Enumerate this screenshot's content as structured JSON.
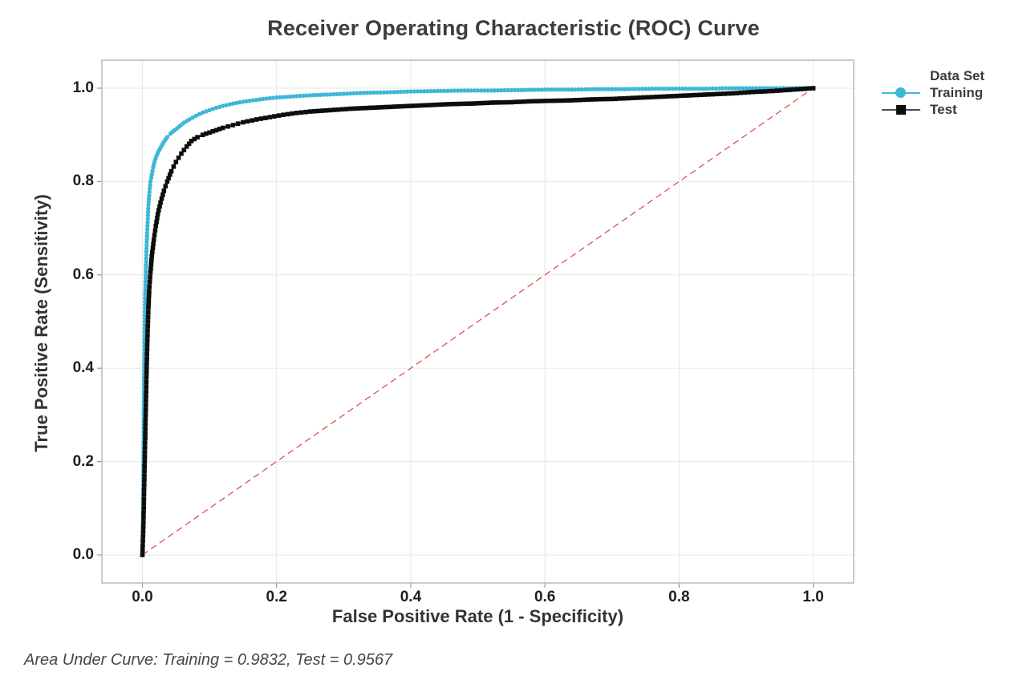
{
  "chart_data": {
    "type": "line",
    "title": "Receiver Operating Characteristic (ROC) Curve",
    "xlabel": "False Positive Rate (1 - Specificity)",
    "ylabel": "True Positive Rate (Sensitivity)",
    "footnote": "Area Under Curve: Training = 0.9832, Test = 0.9567",
    "xlim": [
      0,
      1
    ],
    "ylim": [
      0,
      1
    ],
    "grid": true,
    "x_ticks": [
      0.0,
      0.2,
      0.4,
      0.6,
      0.8,
      1.0
    ],
    "y_ticks": [
      0.0,
      0.2,
      0.4,
      0.6,
      0.8,
      1.0
    ],
    "x_tick_labels": [
      "0.0",
      "0.2",
      "0.4",
      "0.6",
      "0.8",
      "1.0"
    ],
    "y_tick_labels": [
      "0.0",
      "0.2",
      "0.4",
      "0.6",
      "0.8",
      "1.0"
    ],
    "legend": {
      "title": "Data Set",
      "position": "right-top"
    },
    "colors": {
      "grid": "#e7e7e7",
      "frame": "#ababab",
      "tick": "#9b9b9b",
      "diagonal": "#e25050"
    },
    "reference_line": {
      "name": "chance-diagonal",
      "from": [
        0,
        0
      ],
      "to": [
        1,
        1
      ],
      "style": "dashed",
      "color": "#e25050"
    },
    "series": [
      {
        "name": "Training",
        "marker": "circle",
        "color": "#3eb7d7",
        "auc": 0.9832,
        "points": [
          [
            0,
            0
          ],
          [
            0.001,
            0.1
          ],
          [
            0.0015,
            0.2
          ],
          [
            0.002,
            0.3
          ],
          [
            0.0025,
            0.38
          ],
          [
            0.003,
            0.44
          ],
          [
            0.0035,
            0.5
          ],
          [
            0.004,
            0.55
          ],
          [
            0.005,
            0.6
          ],
          [
            0.006,
            0.65
          ],
          [
            0.007,
            0.69
          ],
          [
            0.008,
            0.72
          ],
          [
            0.009,
            0.75
          ],
          [
            0.01,
            0.77
          ],
          [
            0.011,
            0.785
          ],
          [
            0.012,
            0.8
          ],
          [
            0.014,
            0.815
          ],
          [
            0.016,
            0.83
          ],
          [
            0.018,
            0.842
          ],
          [
            0.021,
            0.855
          ],
          [
            0.024,
            0.865
          ],
          [
            0.028,
            0.875
          ],
          [
            0.032,
            0.885
          ],
          [
            0.037,
            0.895
          ],
          [
            0.042,
            0.903
          ],
          [
            0.048,
            0.91
          ],
          [
            0.055,
            0.918
          ],
          [
            0.062,
            0.926
          ],
          [
            0.07,
            0.933
          ],
          [
            0.08,
            0.941
          ],
          [
            0.09,
            0.948
          ],
          [
            0.1,
            0.953
          ],
          [
            0.11,
            0.958
          ],
          [
            0.12,
            0.962
          ],
          [
            0.135,
            0.967
          ],
          [
            0.15,
            0.971
          ],
          [
            0.165,
            0.974
          ],
          [
            0.18,
            0.977
          ],
          [
            0.2,
            0.98
          ],
          [
            0.22,
            0.982
          ],
          [
            0.24,
            0.984
          ],
          [
            0.27,
            0.986
          ],
          [
            0.3,
            0.988
          ],
          [
            0.33,
            0.99
          ],
          [
            0.36,
            0.991
          ],
          [
            0.4,
            0.993
          ],
          [
            0.44,
            0.994
          ],
          [
            0.48,
            0.995
          ],
          [
            0.52,
            0.995
          ],
          [
            0.56,
            0.996
          ],
          [
            0.6,
            0.997
          ],
          [
            0.64,
            0.997
          ],
          [
            0.68,
            0.998
          ],
          [
            0.72,
            0.998
          ],
          [
            0.76,
            0.999
          ],
          [
            0.8,
            0.999
          ],
          [
            0.84,
            0.999
          ],
          [
            0.88,
            1.0
          ],
          [
            0.94,
            1.0
          ],
          [
            1.0,
            1.0
          ]
        ]
      },
      {
        "name": "Test",
        "marker": "square",
        "color": "#0d0d0d",
        "auc": 0.9567,
        "points": [
          [
            0,
            0
          ],
          [
            0.001,
            0.04
          ],
          [
            0.002,
            0.1
          ],
          [
            0.003,
            0.17
          ],
          [
            0.004,
            0.24
          ],
          [
            0.005,
            0.31
          ],
          [
            0.006,
            0.38
          ],
          [
            0.007,
            0.44
          ],
          [
            0.008,
            0.49
          ],
          [
            0.009,
            0.53
          ],
          [
            0.01,
            0.565
          ],
          [
            0.012,
            0.605
          ],
          [
            0.014,
            0.64
          ],
          [
            0.017,
            0.675
          ],
          [
            0.02,
            0.705
          ],
          [
            0.023,
            0.73
          ],
          [
            0.027,
            0.755
          ],
          [
            0.032,
            0.78
          ],
          [
            0.037,
            0.8
          ],
          [
            0.043,
            0.822
          ],
          [
            0.05,
            0.842
          ],
          [
            0.058,
            0.86
          ],
          [
            0.066,
            0.875
          ],
          [
            0.073,
            0.887
          ],
          [
            0.082,
            0.895
          ],
          [
            0.09,
            0.9
          ],
          [
            0.1,
            0.905
          ],
          [
            0.11,
            0.91
          ],
          [
            0.12,
            0.915
          ],
          [
            0.135,
            0.921
          ],
          [
            0.15,
            0.927
          ],
          [
            0.17,
            0.933
          ],
          [
            0.19,
            0.938
          ],
          [
            0.21,
            0.943
          ],
          [
            0.23,
            0.947
          ],
          [
            0.25,
            0.95
          ],
          [
            0.28,
            0.953
          ],
          [
            0.31,
            0.956
          ],
          [
            0.34,
            0.958
          ],
          [
            0.37,
            0.96
          ],
          [
            0.4,
            0.962
          ],
          [
            0.43,
            0.964
          ],
          [
            0.46,
            0.966
          ],
          [
            0.49,
            0.967
          ],
          [
            0.52,
            0.969
          ],
          [
            0.55,
            0.97
          ],
          [
            0.58,
            0.972
          ],
          [
            0.61,
            0.973
          ],
          [
            0.64,
            0.974
          ],
          [
            0.67,
            0.976
          ],
          [
            0.7,
            0.977
          ],
          [
            0.73,
            0.979
          ],
          [
            0.76,
            0.981
          ],
          [
            0.79,
            0.983
          ],
          [
            0.82,
            0.985
          ],
          [
            0.85,
            0.987
          ],
          [
            0.88,
            0.989
          ],
          [
            0.91,
            0.992
          ],
          [
            0.94,
            0.994
          ],
          [
            0.97,
            0.997
          ],
          [
            1.0,
            1.0
          ]
        ]
      }
    ]
  }
}
